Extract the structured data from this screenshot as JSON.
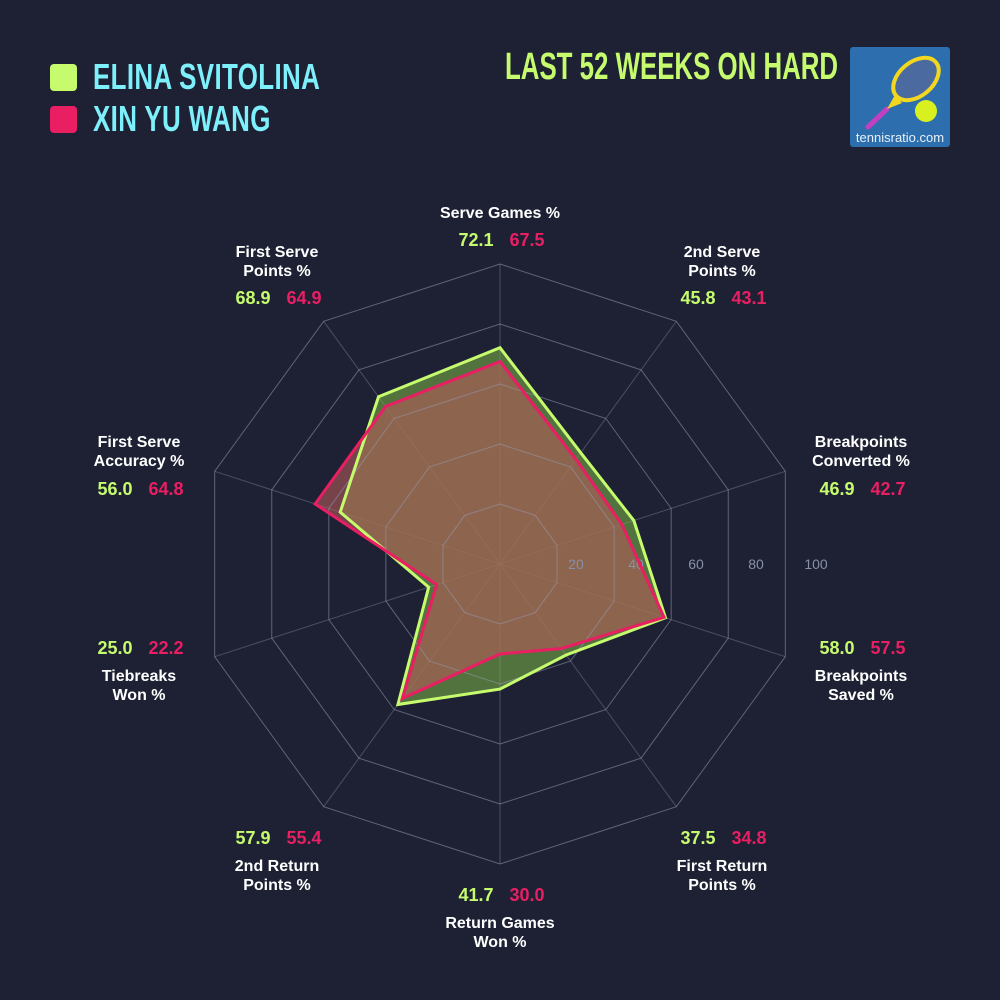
{
  "legend": [
    {
      "name": "ELINA SVITOLINA",
      "color": "#c6fb6e"
    },
    {
      "name": "XIN YU WANG",
      "color": "#e91e63"
    }
  ],
  "title": "LAST 52 WEEKS ON HARD",
  "logo": {
    "text": "tennisratio.com",
    "icon": "tennis-racket-ball-logo"
  },
  "chart_data": {
    "type": "radar",
    "title": "LAST 52 WEEKS ON HARD",
    "range": [
      0,
      100
    ],
    "ticks": [
      "20",
      "40",
      "60",
      "80",
      "100"
    ],
    "categories": [
      [
        "Serve Games %"
      ],
      [
        "2nd Serve",
        "Points %"
      ],
      [
        "Breakpoints",
        "Converted %"
      ],
      [
        "Breakpoints",
        "Saved %"
      ],
      [
        "First Return",
        "Points %"
      ],
      [
        "Return Games",
        "Won %"
      ],
      [
        "2nd Return",
        "Points %"
      ],
      [
        "Tiebreaks",
        "Won %"
      ],
      [
        "First Serve",
        "Accuracy %"
      ],
      [
        "First Serve",
        "Points %"
      ]
    ],
    "series": [
      {
        "name": "ELINA SVITOLINA",
        "color": "#c6fb6e",
        "values": [
          72.1,
          45.8,
          46.9,
          58.0,
          37.5,
          41.7,
          57.9,
          25.0,
          56.0,
          68.9
        ]
      },
      {
        "name": "XIN YU WANG",
        "color": "#e91e63",
        "values": [
          67.5,
          43.1,
          42.7,
          57.5,
          34.8,
          30.0,
          55.4,
          22.2,
          64.8,
          64.9
        ]
      }
    ],
    "value_labels": [
      [
        "72.1",
        "67.5"
      ],
      [
        "45.8",
        "43.1"
      ],
      [
        "46.9",
        "42.7"
      ],
      [
        "58.0",
        "57.5"
      ],
      [
        "37.5",
        "34.8"
      ],
      [
        "41.7",
        "30.0"
      ],
      [
        "57.9",
        "55.4"
      ],
      [
        "25.0",
        "22.2"
      ],
      [
        "56.0",
        "64.8"
      ],
      [
        "68.9",
        "64.9"
      ]
    ]
  }
}
